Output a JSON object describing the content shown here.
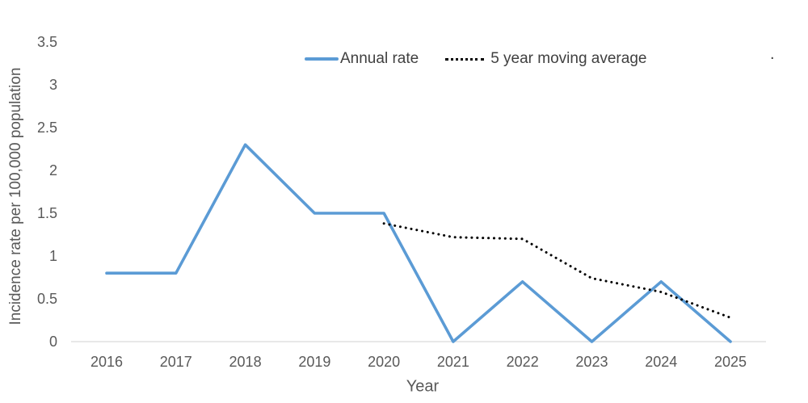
{
  "chart_data": {
    "type": "line",
    "title": "",
    "xlabel": "Year",
    "ylabel": "Incidence rate per 100,000 population",
    "categories": [
      "2016",
      "2017",
      "2018",
      "2019",
      "2020",
      "2021",
      "2022",
      "2023",
      "2024",
      "2025"
    ],
    "yticks": [
      0,
      0.5,
      1,
      1.5,
      2,
      2.5,
      3,
      3.5
    ],
    "ylim": [
      0,
      3.5
    ],
    "grid": false,
    "legend_position": "top-center",
    "axis_color": "#d9d9d9",
    "text_color": "#595959",
    "series": [
      {
        "name": "Annual rate",
        "color": "#5b9bd5",
        "style": "solid",
        "values": [
          0.8,
          0.8,
          2.3,
          1.5,
          1.5,
          0,
          0.7,
          0,
          0.7,
          0
        ]
      },
      {
        "name": "5 year moving average",
        "color": "#000000",
        "style": "dotted",
        "values": [
          null,
          null,
          null,
          null,
          1.38,
          1.22,
          1.2,
          0.74,
          0.58,
          0.28
        ]
      }
    ],
    "annotations": {
      "stray_period": "."
    }
  }
}
